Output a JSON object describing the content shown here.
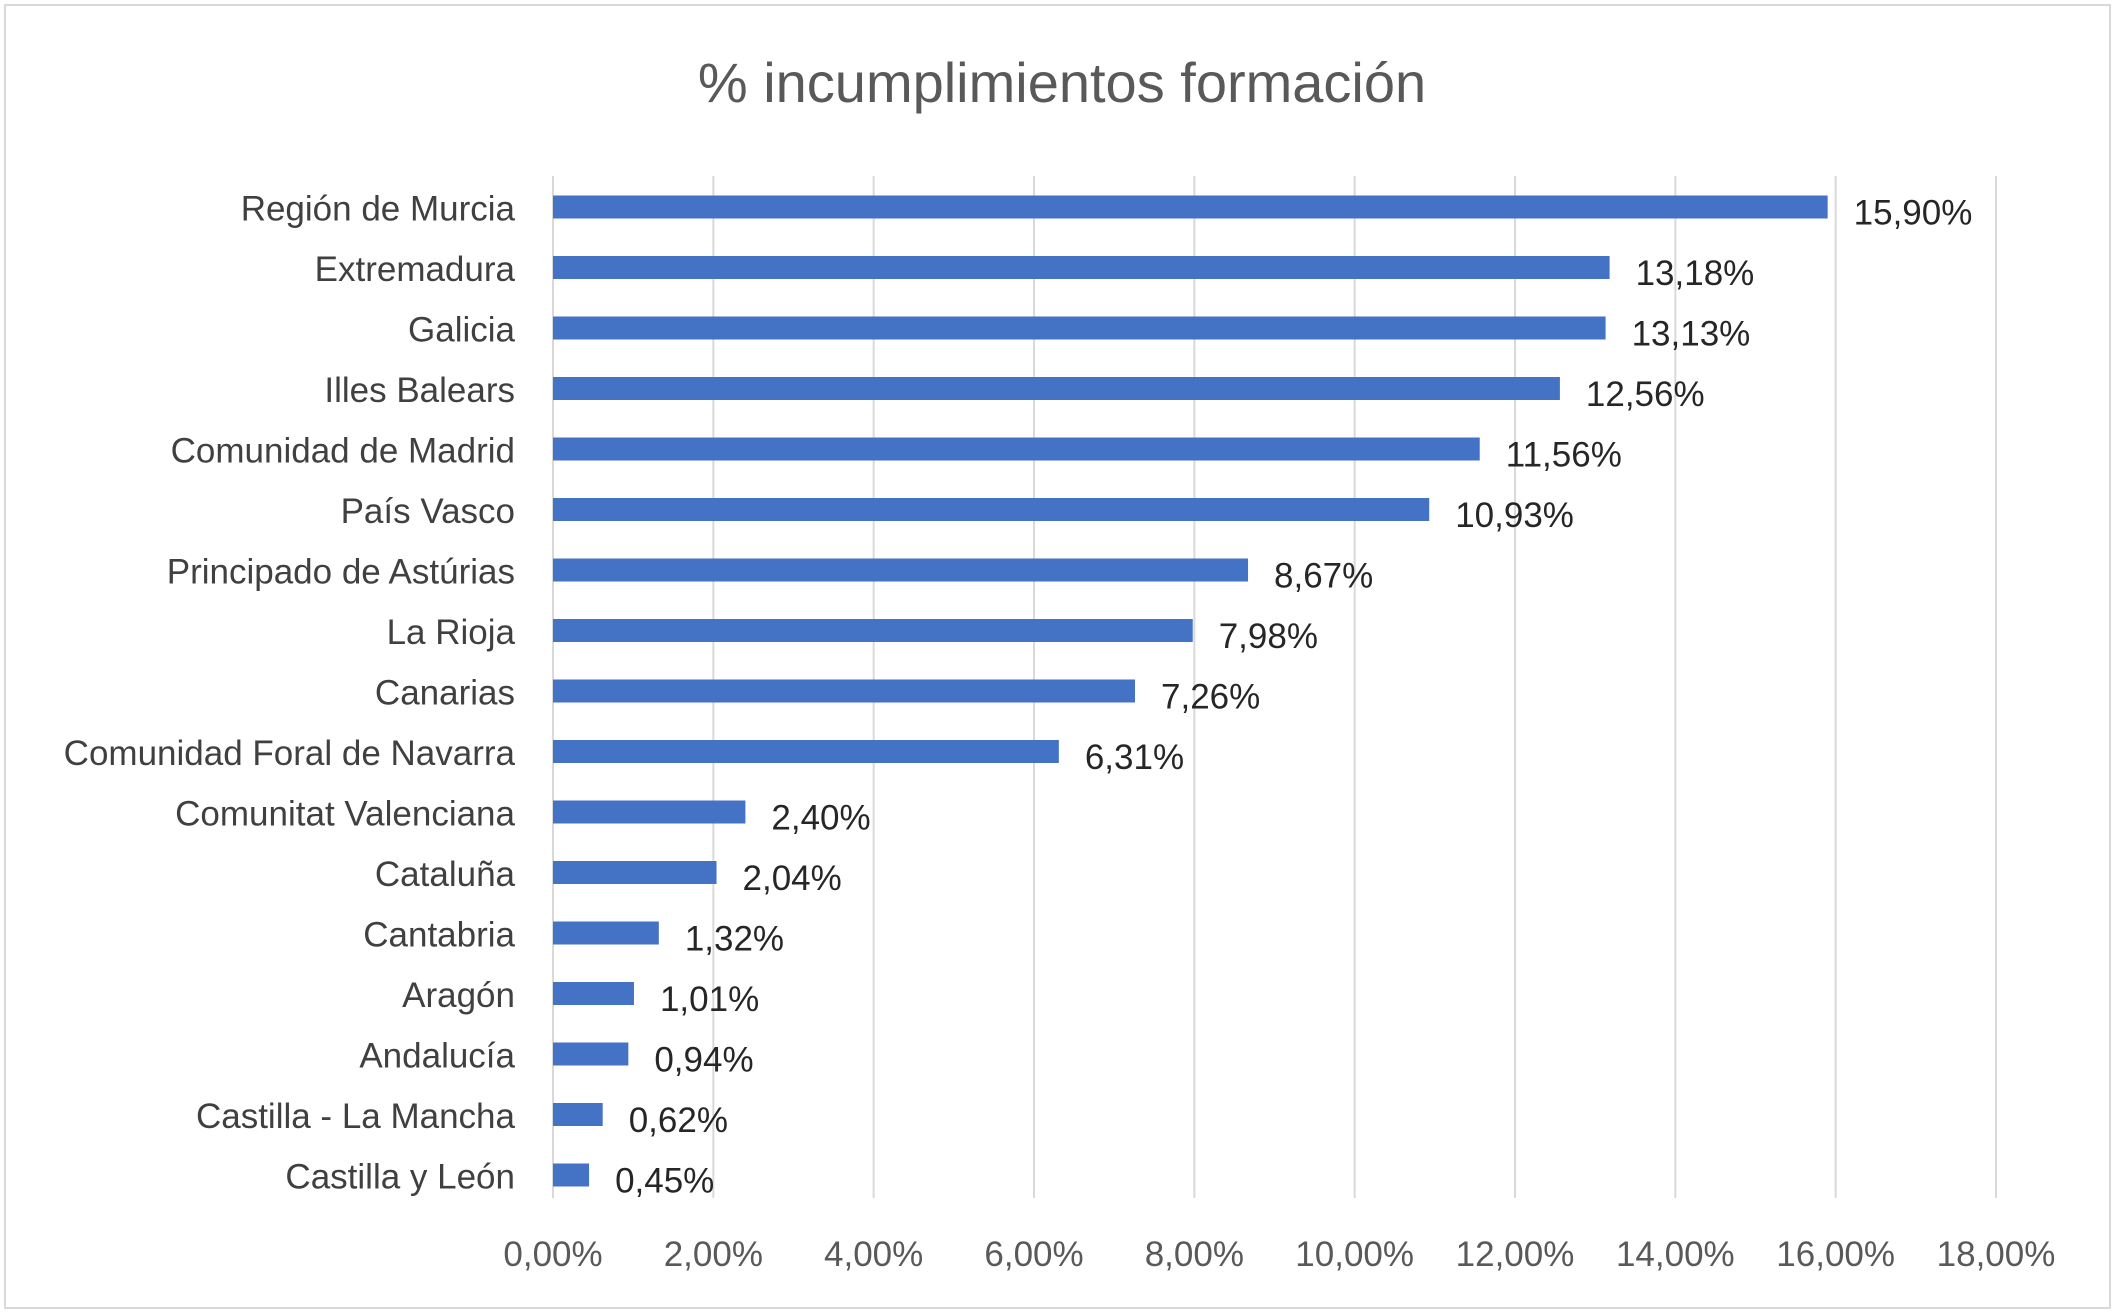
{
  "chart_data": {
    "type": "bar",
    "orientation": "horizontal",
    "title": "% incumplimientos formación",
    "xlabel": "",
    "ylabel": "",
    "categories": [
      "Región de Murcia",
      "Extremadura",
      "Galicia",
      "Illes Balears",
      "Comunidad de Madrid",
      "País Vasco",
      "Principado de Astúrias",
      "La Rioja",
      "Canarias",
      "Comunidad Foral de Navarra",
      "Comunitat Valenciana",
      "Cataluña",
      "Cantabria",
      "Aragón",
      "Andalucía",
      "Castilla - La Mancha",
      "Castilla y León"
    ],
    "values": [
      15.9,
      13.18,
      13.13,
      12.56,
      11.56,
      10.93,
      8.67,
      7.98,
      7.26,
      6.31,
      2.4,
      2.04,
      1.32,
      1.01,
      0.94,
      0.62,
      0.45
    ],
    "data_labels": [
      "15,90%",
      "13,18%",
      "13,13%",
      "12,56%",
      "11,56%",
      "10,93%",
      "8,67%",
      "7,98%",
      "7,26%",
      "6,31%",
      "2,40%",
      "2,04%",
      "1,32%",
      "1,01%",
      "0,94%",
      "0,62%",
      "0,45%"
    ],
    "xlim": [
      0,
      18
    ],
    "x_ticks": [
      0,
      2,
      4,
      6,
      8,
      10,
      12,
      14,
      16,
      18
    ],
    "x_tick_labels": [
      "0,00%",
      "2,00%",
      "4,00%",
      "6,00%",
      "8,00%",
      "10,00%",
      "12,00%",
      "14,00%",
      "16,00%",
      "18,00%"
    ],
    "grid": "vertical",
    "legend": "none",
    "colors": {
      "bar": "#4472c4",
      "grid": "#d9d9d9",
      "title": "#595959",
      "category_text": "#404040",
      "tick_text": "#595959",
      "data_label_text": "#262626",
      "border": "#d9d9d9"
    }
  }
}
